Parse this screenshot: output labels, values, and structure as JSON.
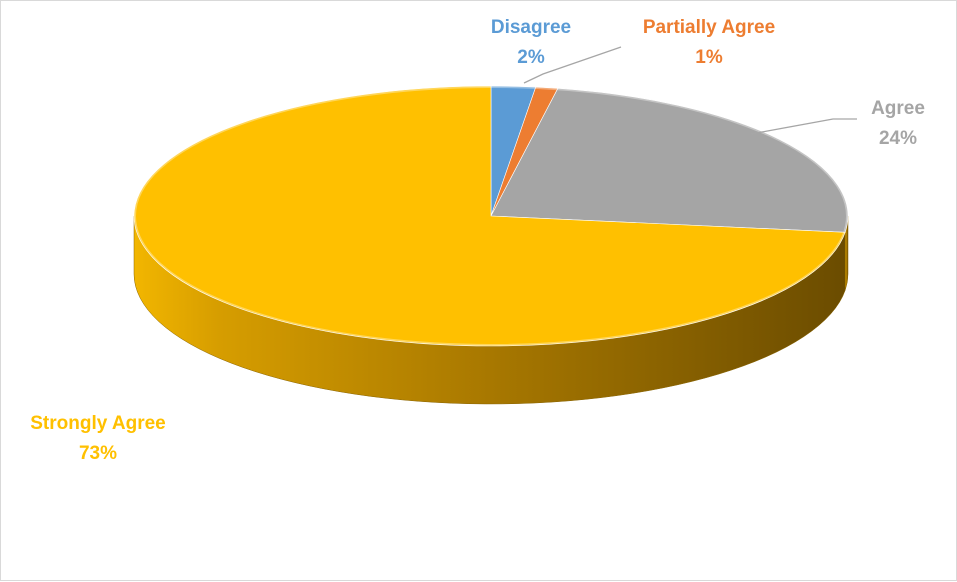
{
  "chart_data": {
    "type": "pie",
    "title": "",
    "legend": "none",
    "style": "3d",
    "slices": [
      {
        "label": "Disagree",
        "value": 2,
        "value_label": "2%",
        "color": "#5b9bd5"
      },
      {
        "label": "Partially Agree",
        "value": 1,
        "value_label": "1%",
        "color": "#ed7d31"
      },
      {
        "label": "Agree",
        "value": 24,
        "value_label": "24%",
        "color": "#a5a5a5"
      },
      {
        "label": "Strongly Agree",
        "value": 73,
        "value_label": "73%",
        "color": "#ffc000"
      }
    ]
  }
}
